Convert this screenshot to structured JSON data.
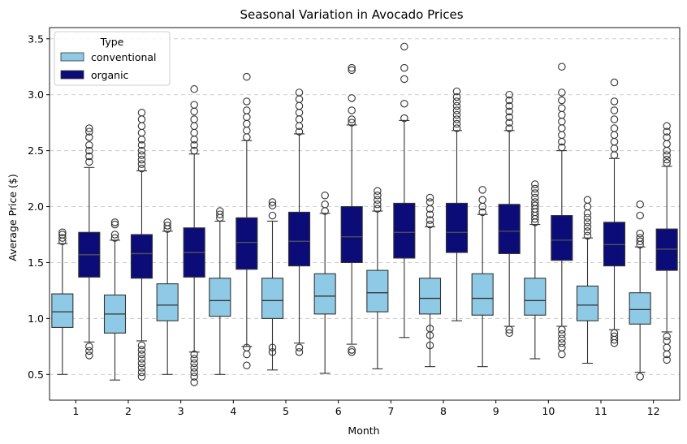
{
  "chart_data": {
    "type": "box",
    "title": "Seasonal Variation in Avocado Prices",
    "xlabel": "Month",
    "ylabel": "Average Price ($)",
    "categories": [
      "1",
      "2",
      "3",
      "4",
      "5",
      "6",
      "7",
      "8",
      "9",
      "10",
      "11",
      "12"
    ],
    "ylim": [
      0.27,
      3.6
    ],
    "yticks": [
      "0.5",
      "1.0",
      "1.5",
      "2.0",
      "2.5",
      "3.0",
      "3.5"
    ],
    "grid": "y-dashed",
    "legend": {
      "title": "Type",
      "position": "top-left",
      "entries": [
        {
          "label": "conventional",
          "color": "#8ecae6"
        },
        {
          "label": "organic",
          "color": "#0c0c78"
        }
      ]
    },
    "series": [
      {
        "name": "conventional",
        "color": "#8ecae6",
        "boxes": [
          {
            "whislo": 0.5,
            "q1": 0.92,
            "med": 1.06,
            "q3": 1.22,
            "whishi": 1.67,
            "fliers": [
              1.69,
              1.72,
              1.75,
              1.77
            ]
          },
          {
            "whislo": 0.45,
            "q1": 0.87,
            "med": 1.04,
            "q3": 1.21,
            "whishi": 1.7,
            "fliers": [
              1.72,
              1.75,
              1.84,
              1.86
            ]
          },
          {
            "whislo": 0.5,
            "q1": 0.98,
            "med": 1.12,
            "q3": 1.31,
            "whishi": 1.78,
            "fliers": [
              1.8,
              1.83,
              1.86
            ]
          },
          {
            "whislo": 0.5,
            "q1": 1.02,
            "med": 1.16,
            "q3": 1.36,
            "whishi": 1.87,
            "fliers": [
              1.9,
              1.93,
              1.96
            ]
          },
          {
            "whislo": 0.54,
            "q1": 1.0,
            "med": 1.16,
            "q3": 1.36,
            "whishi": 1.87,
            "fliers": [
              0.7,
              0.74,
              1.92,
              2.01,
              2.04
            ]
          },
          {
            "whislo": 0.51,
            "q1": 1.04,
            "med": 1.2,
            "q3": 1.4,
            "whishi": 1.94,
            "fliers": [
              1.96,
              2.02,
              2.1
            ]
          },
          {
            "whislo": 0.55,
            "q1": 1.06,
            "med": 1.23,
            "q3": 1.43,
            "whishi": 1.96,
            "fliers": [
              1.98,
              2.02,
              2.06,
              2.1,
              2.14
            ]
          },
          {
            "whislo": 0.57,
            "q1": 1.04,
            "med": 1.18,
            "q3": 1.36,
            "whishi": 1.82,
            "fliers": [
              0.76,
              0.85,
              0.91,
              1.84,
              1.88,
              1.93,
              1.98,
              2.04,
              2.08
            ]
          },
          {
            "whislo": 0.57,
            "q1": 1.03,
            "med": 1.18,
            "q3": 1.4,
            "whishi": 1.93,
            "fliers": [
              1.95,
              2.0,
              2.06,
              2.15
            ]
          },
          {
            "whislo": 0.64,
            "q1": 1.03,
            "med": 1.16,
            "q3": 1.36,
            "whishi": 1.84,
            "fliers": [
              1.86,
              1.89,
              1.92,
              1.95,
              1.98,
              2.01,
              2.04,
              2.08,
              2.12,
              2.16,
              2.2
            ]
          },
          {
            "whislo": 0.6,
            "q1": 0.98,
            "med": 1.12,
            "q3": 1.29,
            "whishi": 1.72,
            "fliers": [
              1.74,
              1.78,
              1.82,
              1.86,
              1.9,
              1.94,
              2.0,
              2.06
            ]
          },
          {
            "whislo": 0.52,
            "q1": 0.95,
            "med": 1.08,
            "q3": 1.23,
            "whishi": 1.64,
            "fliers": [
              0.48,
              1.66,
              1.69,
              1.72,
              1.76,
              1.92,
              2.02
            ]
          }
        ]
      },
      {
        "name": "organic",
        "color": "#0c0c78",
        "boxes": [
          {
            "whislo": 0.79,
            "q1": 1.37,
            "med": 1.57,
            "q3": 1.77,
            "whishi": 2.35,
            "fliers": [
              0.67,
              0.71,
              0.75,
              2.4,
              2.45,
              2.5,
              2.55,
              2.62,
              2.67,
              2.7
            ]
          },
          {
            "whislo": 0.8,
            "q1": 1.36,
            "med": 1.58,
            "q3": 1.75,
            "whishi": 2.32,
            "fliers": [
              0.48,
              0.52,
              0.56,
              0.6,
              0.64,
              0.68,
              0.72,
              0.76,
              2.34,
              2.38,
              2.42,
              2.46,
              2.5,
              2.55,
              2.6,
              2.66,
              2.72,
              2.78,
              2.84
            ]
          },
          {
            "whislo": 0.7,
            "q1": 1.37,
            "med": 1.59,
            "q3": 1.81,
            "whishi": 2.47,
            "fliers": [
              0.43,
              0.48,
              0.52,
              0.56,
              0.6,
              0.64,
              0.68,
              2.5,
              2.55,
              2.6,
              2.66,
              2.72,
              2.78,
              2.85,
              2.91,
              3.05
            ]
          },
          {
            "whislo": 0.75,
            "q1": 1.44,
            "med": 1.68,
            "q3": 1.9,
            "whishi": 2.59,
            "fliers": [
              0.58,
              0.68,
              0.74,
              2.62,
              2.68,
              2.74,
              2.8,
              2.86,
              2.94,
              3.16
            ]
          },
          {
            "whislo": 0.78,
            "q1": 1.47,
            "med": 1.69,
            "q3": 1.95,
            "whishi": 2.65,
            "fliers": [
              0.7,
              0.74,
              2.67,
              2.72,
              2.78,
              2.84,
              2.9,
              2.96,
              3.02
            ]
          },
          {
            "whislo": 0.77,
            "q1": 1.5,
            "med": 1.73,
            "q3": 2.0,
            "whishi": 2.73,
            "fliers": [
              0.7,
              0.72,
              2.75,
              2.78,
              2.86,
              2.97,
              3.22,
              3.24
            ]
          },
          {
            "whislo": 0.83,
            "q1": 1.54,
            "med": 1.77,
            "q3": 2.03,
            "whishi": 2.77,
            "fliers": [
              2.79,
              2.92,
              3.14,
              3.24,
              3.43
            ]
          },
          {
            "whislo": 0.98,
            "q1": 1.59,
            "med": 1.77,
            "q3": 2.03,
            "whishi": 2.68,
            "fliers": [
              2.7,
              2.74,
              2.78,
              2.82,
              2.86,
              2.9,
              2.94,
              2.98,
              3.03
            ]
          },
          {
            "whislo": 0.93,
            "q1": 1.58,
            "med": 1.78,
            "q3": 2.02,
            "whishi": 2.68,
            "fliers": [
              0.87,
              0.9,
              2.7,
              2.75,
              2.8,
              2.85,
              2.9,
              2.95,
              3.0
            ]
          },
          {
            "whislo": 0.93,
            "q1": 1.52,
            "med": 1.7,
            "q3": 1.92,
            "whishi": 2.5,
            "fliers": [
              0.68,
              0.74,
              0.78,
              0.82,
              0.86,
              0.9,
              2.53,
              2.58,
              2.64,
              2.7,
              2.76,
              2.82,
              2.88,
              2.95,
              3.02,
              3.25
            ]
          },
          {
            "whislo": 0.9,
            "q1": 1.47,
            "med": 1.66,
            "q3": 1.86,
            "whishi": 2.43,
            "fliers": [
              0.78,
              0.81,
              0.84,
              0.87,
              2.46,
              2.52,
              2.58,
              2.64,
              2.7,
              2.78,
              2.86,
              2.94,
              3.11
            ]
          },
          {
            "whislo": 0.88,
            "q1": 1.43,
            "med": 1.62,
            "q3": 1.8,
            "whishi": 2.36,
            "fliers": [
              0.63,
              0.68,
              0.74,
              0.8,
              0.84,
              2.39,
              2.42,
              2.46,
              2.5,
              2.56,
              2.62,
              2.67,
              2.72
            ]
          }
        ]
      }
    ]
  }
}
